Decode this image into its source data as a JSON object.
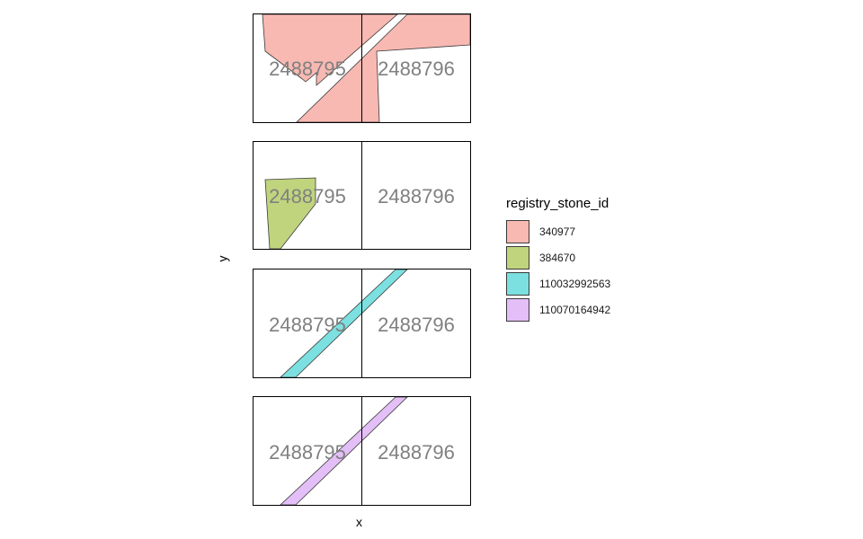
{
  "axes": {
    "x_title": "x",
    "y_title": "y"
  },
  "legend": {
    "title": "registry_stone_id",
    "items": [
      {
        "id": "340977",
        "label": "340977",
        "color": "#f8b9b2"
      },
      {
        "id": "384670",
        "label": "384670",
        "color": "#c0d47e"
      },
      {
        "id": "110032992563",
        "label": "110032992563",
        "color": "#7de0e0"
      },
      {
        "id": "110070164942",
        "label": "110070164942",
        "color": "#e3bef7"
      }
    ]
  },
  "panels": [
    {
      "stone_id": "340977",
      "parcel_labels": [
        "2488795",
        "2488796"
      ]
    },
    {
      "stone_id": "384670",
      "parcel_labels": [
        "2488795",
        "2488796"
      ]
    },
    {
      "stone_id": "110032992563",
      "parcel_labels": [
        "2488795",
        "2488796"
      ]
    },
    {
      "stone_id": "110070164942",
      "parcel_labels": [
        "2488795",
        "2488796"
      ]
    }
  ]
}
